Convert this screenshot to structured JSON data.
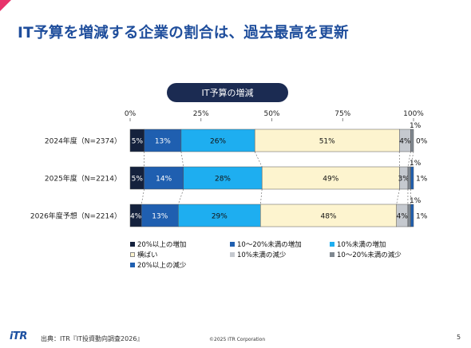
{
  "page_title": "IT予算を増減する企業の割合は、過去最高を更新",
  "chart_data": {
    "type": "bar",
    "orientation": "horizontal",
    "stacked": true,
    "title": "IT予算の増減",
    "x_ticks": [
      "0%",
      "25%",
      "50%",
      "75%",
      "100%"
    ],
    "xlim": [
      0,
      100
    ],
    "categories": [
      "2024年度（N=2374）",
      "2025年度（N=2214）",
      "2026年度予想（N=2214）"
    ],
    "series": [
      {
        "name": "20%以上の増加",
        "color": "#14213d",
        "values": [
          5,
          5,
          4
        ],
        "labels": [
          "5%",
          "5%",
          "4%"
        ]
      },
      {
        "name": "10～20%未満の増加",
        "color": "#1f5fb0",
        "values": [
          13,
          14,
          13
        ],
        "labels": [
          "13%",
          "14%",
          "13%"
        ]
      },
      {
        "name": "10%未満の増加",
        "color": "#1eaef0",
        "values": [
          26,
          28,
          29
        ],
        "labels": [
          "26%",
          "28%",
          "29%"
        ]
      },
      {
        "name": "横ばい",
        "color": "#fdf4cf",
        "values": [
          51,
          49,
          48
        ],
        "labels": [
          "51%",
          "49%",
          "48%"
        ]
      },
      {
        "name": "10%未満の減少",
        "color": "#c5c9cf",
        "values": [
          4,
          3,
          4
        ],
        "labels": [
          "4%",
          "3%",
          "4%"
        ]
      },
      {
        "name": "10～20%未満の減少",
        "color": "#808890",
        "values": [
          1,
          1,
          1
        ],
        "labels": [
          "1%",
          "1%",
          "1%"
        ]
      },
      {
        "name": "20%以上の減少",
        "color": "#1f5fb0",
        "values": [
          0,
          1,
          1
        ],
        "labels": [
          "0%",
          "1%",
          "1%"
        ]
      }
    ],
    "grid": false,
    "connector_lines": true,
    "legend_position": "bottom"
  },
  "footer": {
    "logo": "iTR",
    "source": "出典：ITR『IT投資動向調査2026』",
    "copyright": "©2025 ITR Corporation",
    "page_number": "5"
  }
}
